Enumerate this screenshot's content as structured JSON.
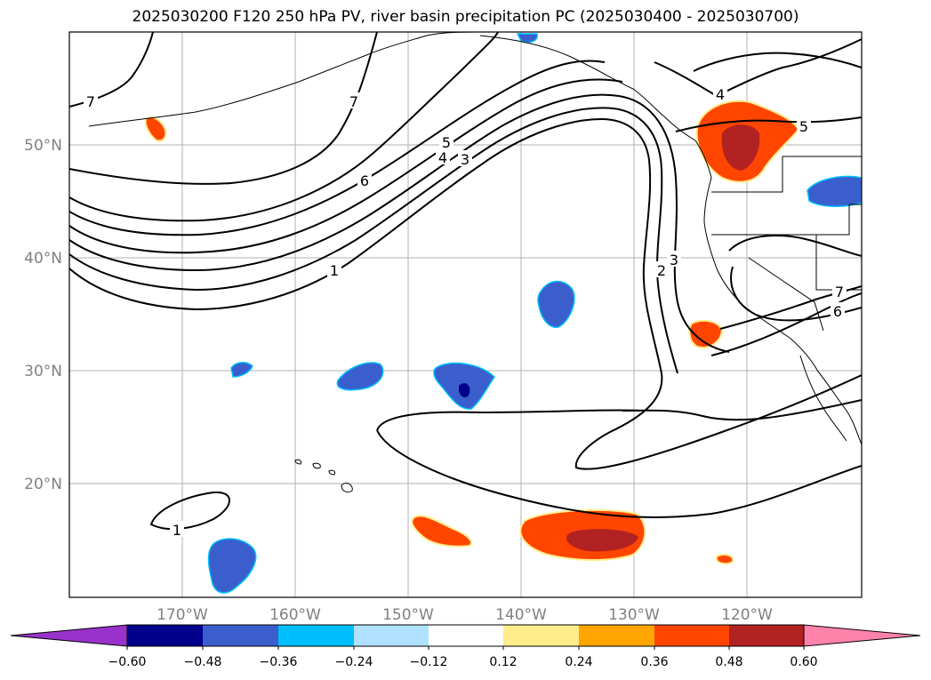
{
  "title": "2025030200 F120 250 hPa PV, river basin precipitation PC (2025030400 - 2025030700)",
  "lat_labels": [
    "50°N",
    "40°N",
    "30°N",
    "20°N"
  ],
  "lon_labels": [
    "170°W",
    "160°W",
    "150°W",
    "140°W",
    "130°W",
    "120°W"
  ],
  "pv_contour_labels": [
    "7",
    "7",
    "6",
    "5",
    "4",
    "3",
    "1",
    "3",
    "2",
    "4",
    "5",
    "7",
    "6",
    "1"
  ],
  "colorbar": {
    "tick_labels": [
      "−0.60",
      "−0.48",
      "−0.36",
      "−0.24",
      "−0.12",
      "0.12",
      "0.24",
      "0.36",
      "0.48",
      "0.60"
    ],
    "colors": [
      "#9932cc",
      "#00008b",
      "#3a5fcd",
      "#00bfff",
      "#b0e2ff",
      "#ffffff",
      "#ffec8b",
      "#ffa500",
      "#ff4500",
      "#b22222",
      "#ff82ab"
    ]
  }
}
